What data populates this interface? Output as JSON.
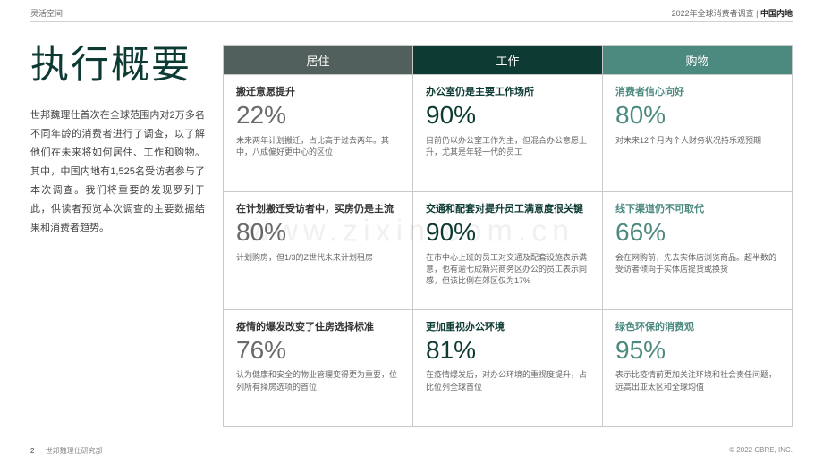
{
  "header": {
    "left": "灵活空间",
    "right_prefix": "2022年全球消费者调查 | ",
    "right_bold": "中国内地"
  },
  "title": "执行概要",
  "intro": "世邦魏理仕首次在全球范围内对2万多名不同年龄的消费者进行了调查，以了解他们在未来将如何居住、工作和购物。其中，中国内地有1,525名受访者参与了本次调查。我们将重要的发现罗列于此，供读者预览本次调查的主要数据结果和消费者趋势。",
  "columns": [
    {
      "label": "居住",
      "bg": "#51605c",
      "text_color": "#333333",
      "stat_color": "#6a6a6a"
    },
    {
      "label": "工作",
      "bg": "#0d3b33",
      "text_color": "#0d3b33",
      "stat_color": "#0d3b33"
    },
    {
      "label": "购物",
      "bg": "#4c8a7f",
      "text_color": "#4c8a7f",
      "stat_color": "#4c8a7f"
    }
  ],
  "rows": [
    [
      {
        "h": "搬迁意愿提升",
        "stat": "22%",
        "desc": "未来两年计划搬迁，占比高于过去两年。其中，八成偏好更中心的区位"
      },
      {
        "h": "办公室仍是主要工作场所",
        "stat": "90%",
        "desc": "目前仍以办公室工作为主，但混合办公意愿上升，尤其是年轻一代的员工"
      },
      {
        "h": "消费者信心向好",
        "stat": "80%",
        "desc": "对未来12个月内个人财务状况持乐观预期"
      }
    ],
    [
      {
        "h": "在计划搬迁受访者中，买房仍是主流",
        "stat": "80%",
        "desc": "计划购房，但1/3的Z世代未来计划租房"
      },
      {
        "h": "交通和配套对提升员工满意度很关键",
        "stat": "90%",
        "desc": "在市中心上班的员工对交通及配套设施表示满意，也有逾七成新兴商务区办公的员工表示同感，但该比例在郊区仅为17%"
      },
      {
        "h": "线下渠道仍不可取代",
        "stat": "66%",
        "desc": "会在网购前，先去实体店浏览商品。超半数的受访者倾向于实体店提货或换货"
      }
    ],
    [
      {
        "h": "疫情的爆发改变了住房选择标准",
        "stat": "76%",
        "desc": "认为健康和安全的物业管理变得更为重要，位列所有择房选项的首位"
      },
      {
        "h": "更加重视办公环境",
        "stat": "81%",
        "desc": "在疫情爆发后，对办公环境的重视度提升，占比位列全球首位"
      },
      {
        "h": "绿色环保的消费观",
        "stat": "95%",
        "desc": "表示比疫情前更加关注环境和社会责任问题，远高出亚太区和全球均值"
      }
    ]
  ],
  "footer": {
    "page": "2",
    "org": "世邦魏理仕研究部",
    "copyright": "© 2022 CBRE, INC."
  },
  "watermark": "www.zixin.com.cn"
}
